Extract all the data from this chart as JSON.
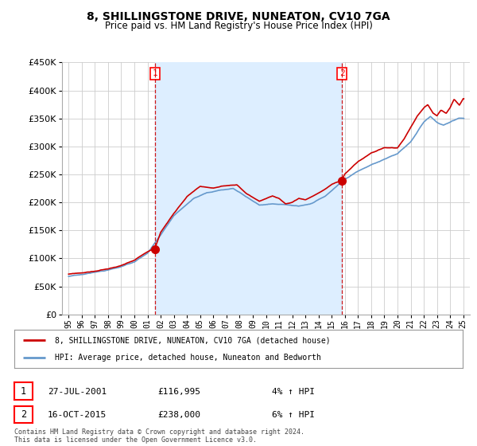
{
  "title": "8, SHILLINGSTONE DRIVE, NUNEATON, CV10 7GA",
  "subtitle": "Price paid vs. HM Land Registry's House Price Index (HPI)",
  "legend_line1": "8, SHILLINGSTONE DRIVE, NUNEATON, CV10 7GA (detached house)",
  "legend_line2": "HPI: Average price, detached house, Nuneaton and Bedworth",
  "annotation1_date": "27-JUL-2001",
  "annotation1_price": "£116,995",
  "annotation1_hpi": "4% ↑ HPI",
  "annotation2_date": "16-OCT-2015",
  "annotation2_price": "£238,000",
  "annotation2_hpi": "6% ↑ HPI",
  "footer": "Contains HM Land Registry data © Crown copyright and database right 2024.\nThis data is licensed under the Open Government Licence v3.0.",
  "sale1_x": 2001.57,
  "sale1_y": 116995,
  "sale2_x": 2015.79,
  "sale2_y": 238000,
  "hpi_color": "#6699cc",
  "price_color": "#cc0000",
  "vline_color": "#cc0000",
  "shade_color": "#ddeeff",
  "background_color": "#ffffff",
  "grid_color": "#cccccc",
  "ylim": [
    0,
    450000
  ],
  "xlim": [
    1994.5,
    2025.5
  ],
  "title_fontsize": 10,
  "subtitle_fontsize": 8.5
}
